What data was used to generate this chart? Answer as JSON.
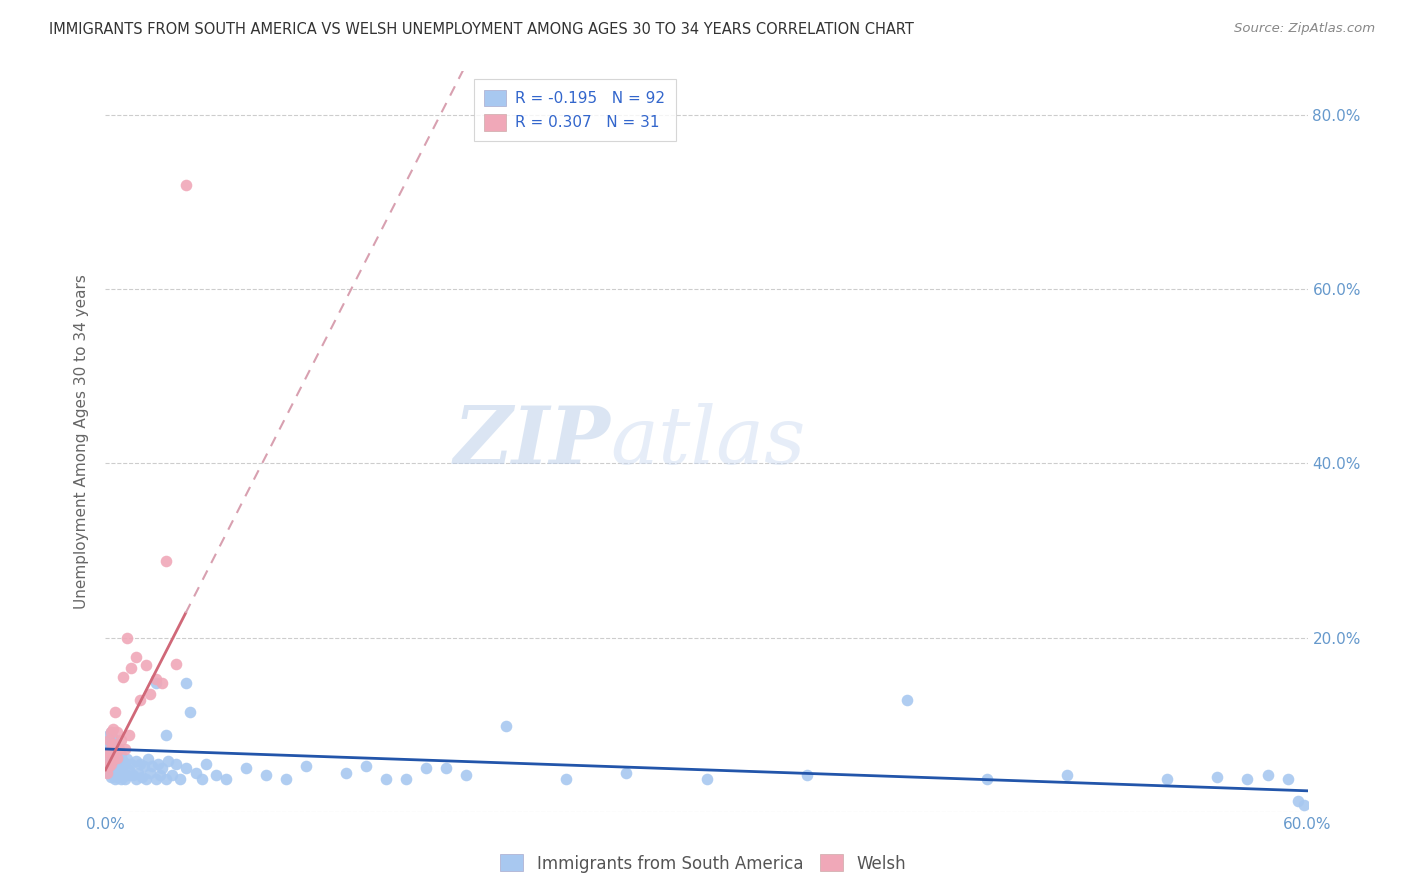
{
  "title": "IMMIGRANTS FROM SOUTH AMERICA VS WELSH UNEMPLOYMENT AMONG AGES 30 TO 34 YEARS CORRELATION CHART",
  "source": "Source: ZipAtlas.com",
  "ylabel": "Unemployment Among Ages 30 to 34 years",
  "xlim": [
    0.0,
    0.6
  ],
  "ylim": [
    0.0,
    0.85
  ],
  "legend_R_blue": "-0.195",
  "legend_N_blue": "92",
  "legend_R_pink": "0.307",
  "legend_N_pink": "31",
  "watermark_zip": "ZIP",
  "watermark_atlas": "atlas",
  "background_color": "#ffffff",
  "grid_color": "#c8c8c8",
  "blue_scatter_color": "#a8c8f0",
  "pink_scatter_color": "#f0a8b8",
  "blue_line_color": "#2255aa",
  "pink_line_solid_color": "#d06878",
  "pink_line_dash_color": "#d8a0b0",
  "title_color": "#333333",
  "source_color": "#888888",
  "ylabel_color": "#666666",
  "tick_color": "#6699cc",
  "legend_text_color": "#3366cc",
  "legend_edge_color": "#cccccc",
  "bottom_legend_color": "#555555",
  "blue_scatter_x": [
    0.001,
    0.001,
    0.001,
    0.002,
    0.002,
    0.002,
    0.002,
    0.003,
    0.003,
    0.003,
    0.003,
    0.003,
    0.004,
    0.004,
    0.004,
    0.004,
    0.005,
    0.005,
    0.005,
    0.005,
    0.006,
    0.006,
    0.006,
    0.007,
    0.007,
    0.008,
    0.008,
    0.008,
    0.009,
    0.009,
    0.01,
    0.01,
    0.011,
    0.011,
    0.012,
    0.013,
    0.014,
    0.015,
    0.015,
    0.016,
    0.017,
    0.018,
    0.019,
    0.02,
    0.021,
    0.022,
    0.023,
    0.025,
    0.026,
    0.027,
    0.028,
    0.03,
    0.031,
    0.033,
    0.035,
    0.037,
    0.04,
    0.042,
    0.045,
    0.048,
    0.05,
    0.055,
    0.06,
    0.07,
    0.08,
    0.09,
    0.1,
    0.12,
    0.14,
    0.16,
    0.18,
    0.2,
    0.23,
    0.26,
    0.3,
    0.35,
    0.4,
    0.44,
    0.48,
    0.53,
    0.555,
    0.57,
    0.58,
    0.59,
    0.595,
    0.598,
    0.025,
    0.03,
    0.04,
    0.13,
    0.15,
    0.17
  ],
  "blue_scatter_y": [
    0.055,
    0.068,
    0.08,
    0.045,
    0.058,
    0.072,
    0.088,
    0.04,
    0.055,
    0.068,
    0.08,
    0.092,
    0.042,
    0.058,
    0.07,
    0.085,
    0.038,
    0.052,
    0.065,
    0.078,
    0.04,
    0.055,
    0.068,
    0.045,
    0.06,
    0.038,
    0.052,
    0.065,
    0.042,
    0.058,
    0.038,
    0.055,
    0.042,
    0.06,
    0.048,
    0.055,
    0.042,
    0.038,
    0.058,
    0.045,
    0.055,
    0.04,
    0.052,
    0.038,
    0.06,
    0.045,
    0.052,
    0.038,
    0.055,
    0.042,
    0.05,
    0.038,
    0.058,
    0.042,
    0.055,
    0.038,
    0.05,
    0.115,
    0.045,
    0.038,
    0.055,
    0.042,
    0.038,
    0.05,
    0.042,
    0.038,
    0.052,
    0.045,
    0.038,
    0.05,
    0.042,
    0.098,
    0.038,
    0.045,
    0.038,
    0.042,
    0.128,
    0.038,
    0.042,
    0.038,
    0.04,
    0.038,
    0.042,
    0.038,
    0.012,
    0.008,
    0.148,
    0.088,
    0.148,
    0.052,
    0.038,
    0.05
  ],
  "pink_scatter_x": [
    0.001,
    0.001,
    0.002,
    0.002,
    0.002,
    0.003,
    0.003,
    0.003,
    0.004,
    0.004,
    0.004,
    0.005,
    0.005,
    0.006,
    0.006,
    0.007,
    0.008,
    0.009,
    0.01,
    0.011,
    0.012,
    0.013,
    0.015,
    0.017,
    0.02,
    0.022,
    0.025,
    0.028,
    0.03,
    0.035,
    0.04
  ],
  "pink_scatter_y": [
    0.045,
    0.06,
    0.052,
    0.068,
    0.082,
    0.055,
    0.072,
    0.092,
    0.06,
    0.078,
    0.095,
    0.068,
    0.115,
    0.062,
    0.092,
    0.072,
    0.082,
    0.155,
    0.072,
    0.2,
    0.088,
    0.165,
    0.178,
    0.128,
    0.168,
    0.135,
    0.152,
    0.148,
    0.288,
    0.17,
    0.72
  ],
  "pink_line_x_start": 0.0,
  "pink_line_x_solid_end": 0.04,
  "pink_line_x_dash_end": 0.6,
  "pink_line_intercept": 0.048,
  "pink_line_slope": 4.5,
  "blue_line_intercept": 0.072,
  "blue_line_slope": -0.08
}
